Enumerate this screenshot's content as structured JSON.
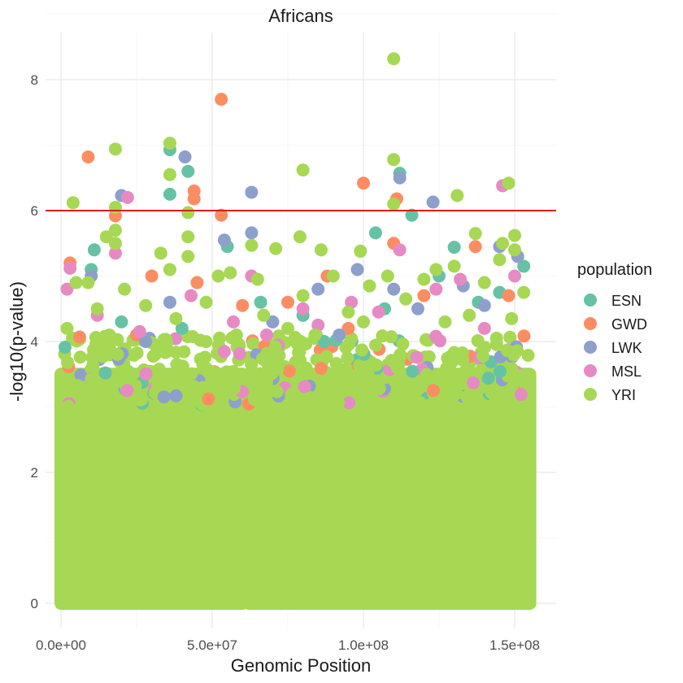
{
  "chart_data": {
    "type": "scatter",
    "title": "Africans",
    "xlabel": "Genomic Position",
    "ylabel": "-log10(p-value)",
    "xlim": [
      0,
      155000000
    ],
    "ylim": [
      0,
      8.5
    ],
    "x_ticks": [
      {
        "value": 0,
        "label": "0.0e+00"
      },
      {
        "value": 50000000,
        "label": "5.0e+07"
      },
      {
        "value": 100000000,
        "label": "1.0e+08"
      },
      {
        "value": 150000000,
        "label": "1.5e+08"
      }
    ],
    "y_ticks": [
      {
        "value": 0,
        "label": "0"
      },
      {
        "value": 2,
        "label": "2"
      },
      {
        "value": 4,
        "label": "4"
      },
      {
        "value": 6,
        "label": "6"
      },
      {
        "value": 8,
        "label": "8"
      }
    ],
    "threshold": {
      "value": 6,
      "color": "#e41a1c"
    },
    "grid": true,
    "legend": {
      "title": "population",
      "position": "right"
    },
    "series": [
      {
        "name": "ESN",
        "color": "#66c2a5",
        "points": [
          [
            36000000,
            6.93
          ],
          [
            36000000,
            6.25
          ],
          [
            42000000,
            6.6
          ],
          [
            112000000,
            6.57
          ],
          [
            116000000,
            5.93
          ],
          [
            104000000,
            5.66
          ],
          [
            10000000,
            5.1
          ],
          [
            11000000,
            5.4
          ],
          [
            55000000,
            5.45
          ],
          [
            130000000,
            5.44
          ],
          [
            138000000,
            4.6
          ],
          [
            145000000,
            4.75
          ],
          [
            153000000,
            5.15
          ],
          [
            87000000,
            4.0
          ],
          [
            107000000,
            4.5
          ],
          [
            40000000,
            4.2
          ],
          [
            125000000,
            5.0
          ],
          [
            80000000,
            4.4
          ],
          [
            20000000,
            4.3
          ],
          [
            66000000,
            4.6
          ]
        ]
      },
      {
        "name": "GWD",
        "color": "#fc8d62",
        "points": [
          [
            9000000,
            6.82
          ],
          [
            53000000,
            7.7
          ],
          [
            44000000,
            6.3
          ],
          [
            44000000,
            6.18
          ],
          [
            53000000,
            5.93
          ],
          [
            18000000,
            5.92
          ],
          [
            100000000,
            6.42
          ],
          [
            111000000,
            6.18
          ],
          [
            3000000,
            5.2
          ],
          [
            30000000,
            5.0
          ],
          [
            137000000,
            5.45
          ],
          [
            110000000,
            5.5
          ],
          [
            88000000,
            5.0
          ],
          [
            45000000,
            4.9
          ],
          [
            120000000,
            4.7
          ],
          [
            60000000,
            4.55
          ],
          [
            95000000,
            4.2
          ],
          [
            148000000,
            4.7
          ],
          [
            75000000,
            4.6
          ],
          [
            25000000,
            4.1
          ]
        ]
      },
      {
        "name": "LWK",
        "color": "#8da0cb",
        "points": [
          [
            41000000,
            6.82
          ],
          [
            20000000,
            6.23
          ],
          [
            63000000,
            6.28
          ],
          [
            112000000,
            6.5
          ],
          [
            123000000,
            6.13
          ],
          [
            54000000,
            5.55
          ],
          [
            63000000,
            5.66
          ],
          [
            151000000,
            5.3
          ],
          [
            145000000,
            5.45
          ],
          [
            98000000,
            5.1
          ],
          [
            85000000,
            4.8
          ],
          [
            110000000,
            4.8
          ],
          [
            133000000,
            4.85
          ],
          [
            140000000,
            4.55
          ],
          [
            10000000,
            5.0
          ],
          [
            36000000,
            4.6
          ],
          [
            70000000,
            4.3
          ],
          [
            118000000,
            4.5
          ],
          [
            28000000,
            4.0
          ],
          [
            92000000,
            4.1
          ]
        ]
      },
      {
        "name": "MSL",
        "color": "#e78ac3",
        "points": [
          [
            22000000,
            6.2
          ],
          [
            146000000,
            6.38
          ],
          [
            3000000,
            5.12
          ],
          [
            18000000,
            5.35
          ],
          [
            112000000,
            5.4
          ],
          [
            124000000,
            4.8
          ],
          [
            150000000,
            5.0
          ],
          [
            2000000,
            4.8
          ],
          [
            63000000,
            5.0
          ],
          [
            43000000,
            4.7
          ],
          [
            132000000,
            4.95
          ],
          [
            80000000,
            4.5
          ],
          [
            12000000,
            4.4
          ],
          [
            96000000,
            4.6
          ],
          [
            57000000,
            4.3
          ],
          [
            140000000,
            4.2
          ],
          [
            105000000,
            4.45
          ],
          [
            26000000,
            4.15
          ],
          [
            85000000,
            4.25
          ],
          [
            68000000,
            4.1
          ]
        ]
      },
      {
        "name": "YRI",
        "color": "#a6d854",
        "points": [
          [
            110000000,
            8.32
          ],
          [
            36000000,
            7.03
          ],
          [
            18000000,
            6.94
          ],
          [
            80000000,
            6.62
          ],
          [
            110000000,
            6.78
          ],
          [
            148000000,
            6.42
          ],
          [
            131000000,
            6.23
          ],
          [
            4000000,
            6.12
          ],
          [
            36000000,
            6.55
          ],
          [
            18000000,
            6.05
          ],
          [
            42000000,
            5.97
          ],
          [
            110000000,
            6.1
          ],
          [
            15000000,
            5.6
          ],
          [
            18000000,
            5.7
          ],
          [
            18000000,
            5.5
          ],
          [
            79000000,
            5.6
          ],
          [
            86000000,
            5.4
          ],
          [
            99000000,
            5.38
          ],
          [
            137000000,
            5.65
          ],
          [
            150000000,
            5.62
          ],
          [
            146000000,
            5.5
          ],
          [
            42000000,
            5.6
          ],
          [
            42000000,
            5.3
          ],
          [
            63000000,
            5.47
          ],
          [
            71000000,
            5.42
          ],
          [
            36000000,
            5.1
          ],
          [
            52000000,
            5.0
          ],
          [
            150000000,
            5.4
          ],
          [
            130000000,
            5.15
          ],
          [
            124000000,
            5.1
          ],
          [
            145000000,
            5.25
          ],
          [
            5000000,
            4.9
          ],
          [
            9000000,
            4.9
          ],
          [
            21000000,
            4.8
          ],
          [
            33000000,
            5.35
          ],
          [
            56000000,
            5.05
          ],
          [
            65000000,
            4.95
          ],
          [
            90000000,
            5.0
          ],
          [
            102000000,
            4.85
          ],
          [
            108000000,
            5.0
          ],
          [
            120000000,
            4.95
          ],
          [
            140000000,
            4.9
          ],
          [
            153000000,
            4.75
          ],
          [
            80000000,
            4.7
          ],
          [
            95000000,
            4.45
          ],
          [
            48000000,
            4.6
          ],
          [
            28000000,
            4.55
          ],
          [
            12000000,
            4.5
          ],
          [
            2000000,
            4.2
          ],
          [
            67000000,
            4.4
          ],
          [
            114000000,
            4.65
          ],
          [
            127000000,
            4.3
          ],
          [
            38000000,
            4.35
          ],
          [
            84000000,
            4.1
          ],
          [
            100000000,
            4.3
          ],
          [
            135000000,
            4.4
          ],
          [
            149000000,
            4.35
          ],
          [
            58000000,
            4.1
          ],
          [
            75000000,
            4.2
          ],
          [
            16000000,
            4.1
          ]
        ]
      }
    ],
    "dense_band": {
      "series": "YRI",
      "x_segments": [
        [
          0,
          60000000
        ],
        [
          62000000,
          155000000
        ]
      ],
      "ymin": 0,
      "ymax": 3.6
    },
    "gap": [
      60000000,
      62000000
    ]
  }
}
